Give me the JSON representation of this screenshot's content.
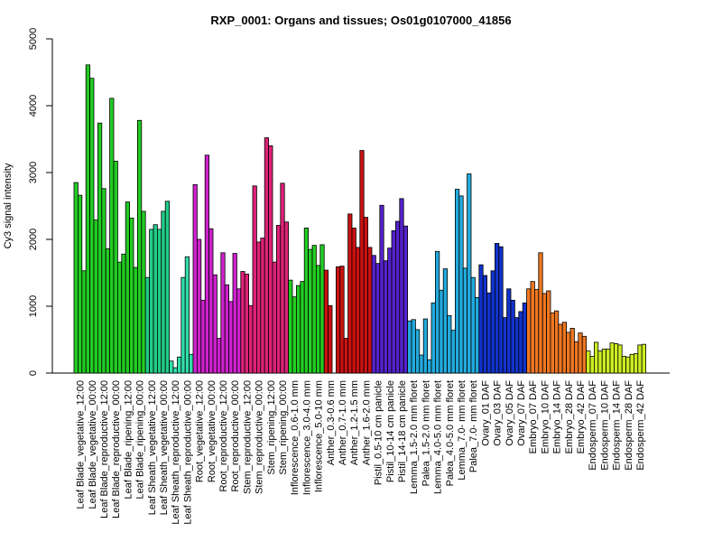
{
  "chart_data": {
    "type": "bar",
    "title": "RXP_0001: Organs and tissues; Os01g0107000_41856",
    "xlabel": "",
    "ylabel": "Cy3 signal intensity",
    "ylim": [
      0,
      5000
    ],
    "yticks": [
      0,
      1000,
      2000,
      3000,
      4000,
      5000
    ],
    "grid": false,
    "legend": "none",
    "groups": [
      {
        "label": "Leaf Blade_vegetative_12:00",
        "color": "#22cc22",
        "values": [
          2850,
          2660,
          1530
        ]
      },
      {
        "label": "Leaf Blade_vegetative_00:00",
        "color": "#22cc22",
        "values": [
          4610,
          4410,
          2290
        ]
      },
      {
        "label": "Leaf Blade_reproductive_12:00",
        "color": "#22cc22",
        "values": [
          3740,
          2760,
          1860
        ]
      },
      {
        "label": "Leaf Blade_reproductive_00:00",
        "color": "#22cc22",
        "values": [
          4110,
          3170,
          1660
        ]
      },
      {
        "label": "Leaf Blade_ripening_12:00",
        "color": "#22cc22",
        "values": [
          1780,
          2560,
          2320
        ]
      },
      {
        "label": "Leaf Blade_ripening_00:00",
        "color": "#22cc22",
        "values": [
          1580,
          3780,
          2420
        ]
      },
      {
        "label": "Leaf Sheath_vegetative_12:00",
        "color": "#22cc88",
        "values": [
          1430,
          2150,
          2220
        ]
      },
      {
        "label": "Leaf Sheath_vegetative_00:00",
        "color": "#22cc88",
        "values": [
          2150,
          2420,
          2570
        ]
      },
      {
        "label": "Leaf Sheath_reproductive_12:00",
        "color": "#33ddaa",
        "values": [
          180,
          80,
          240
        ]
      },
      {
        "label": "Leaf Sheath_reproductive_00:00",
        "color": "#33ddaa",
        "values": [
          1430,
          1740,
          280
        ]
      },
      {
        "label": "Root_vegetative_12:00",
        "color": "#cc22cc",
        "values": [
          2820,
          2000,
          1090
        ]
      },
      {
        "label": "Root_vegetative_00:00",
        "color": "#cc22cc",
        "values": [
          3260,
          2160,
          1470
        ]
      },
      {
        "label": "Root_reproductive_12:00",
        "color": "#cc22cc",
        "values": [
          520,
          1800,
          1320
        ]
      },
      {
        "label": "Root_reproductive_00:00",
        "color": "#cc22cc",
        "values": [
          1070,
          1790,
          1260
        ]
      },
      {
        "label": "Stem_reproductive_12:00",
        "color": "#dd2277",
        "values": [
          1520,
          1480,
          1010
        ]
      },
      {
        "label": "Stem_reproductive_00:00",
        "color": "#dd2277",
        "values": [
          2800,
          1960,
          2020
        ]
      },
      {
        "label": "Stem_ripening_12:00",
        "color": "#dd2277",
        "values": [
          3520,
          3400,
          1660
        ]
      },
      {
        "label": "Stem_ripening_00:00",
        "color": "#dd2277",
        "values": [
          2210,
          2840,
          2260
        ]
      },
      {
        "label": "Inflorescence_0.6-1.0 mm",
        "color": "#22cc22",
        "values": [
          1390,
          1140,
          1310
        ]
      },
      {
        "label": "Inflorescence_3.0-4.0 mm",
        "color": "#22cc22",
        "values": [
          1370,
          2170,
          1850
        ]
      },
      {
        "label": "Inflorescence_5.0-10 mm",
        "color": "#22cc22",
        "values": [
          1910,
          1610,
          1920
        ]
      },
      {
        "label": "Anther_0.3-0.6 mm",
        "color": "#cc1111",
        "values": [
          1540,
          1010,
          0
        ]
      },
      {
        "label": "Anther_0.7-1.0 mm",
        "color": "#cc1111",
        "values": [
          1590,
          1600,
          520
        ]
      },
      {
        "label": "Anther_1.2-1.5 mm",
        "color": "#cc1111",
        "values": [
          2380,
          2170,
          1880
        ]
      },
      {
        "label": "Anther_1.6-2.0 mm",
        "color": "#cc1111",
        "values": [
          3330,
          2330,
          1880
        ]
      },
      {
        "label": "Pistil_0.5-10 cm panicle",
        "color": "#5522cc",
        "values": [
          1760,
          1640,
          2510
        ]
      },
      {
        "label": "Pistil_10-14 cm panicle",
        "color": "#5522cc",
        "values": [
          1680,
          1870,
          2130
        ]
      },
      {
        "label": "Pistil_14-18 cm panicle",
        "color": "#5522cc",
        "values": [
          2270,
          2610,
          2200
        ]
      },
      {
        "label": "Lemma_1.5-2.0 mm floret",
        "color": "#22aadd",
        "values": [
          780,
          800,
          650
        ]
      },
      {
        "label": "Palea_1.5-2.0 mm floret",
        "color": "#22aadd",
        "values": [
          270,
          810,
          200
        ]
      },
      {
        "label": "Lemma_4.0-5.0 mm floret",
        "color": "#22aadd",
        "values": [
          1050,
          1820,
          1240
        ]
      },
      {
        "label": "Palea_4.0-5.0 mm floret",
        "color": "#22aadd",
        "values": [
          1560,
          860,
          640
        ]
      },
      {
        "label": "Lemma_7.0- mm floret",
        "color": "#22aadd",
        "values": [
          2750,
          2650,
          1570
        ]
      },
      {
        "label": "Palea_7.0- mm floret",
        "color": "#22aadd",
        "values": [
          2980,
          1430,
          1130
        ]
      },
      {
        "label": "Ovary_01 DAF",
        "color": "#1133cc",
        "values": [
          1620,
          1460,
          1200
        ]
      },
      {
        "label": "Ovary_03 DAF",
        "color": "#1133cc",
        "values": [
          1530,
          1940,
          1890
        ]
      },
      {
        "label": "Ovary_05 DAF",
        "color": "#1133cc",
        "values": [
          830,
          1260,
          1090
        ]
      },
      {
        "label": "Ovary_07 DAF",
        "color": "#1133cc",
        "values": [
          830,
          920,
          1050
        ]
      },
      {
        "label": "Embryo_07 DAF",
        "color": "#ee7722",
        "values": [
          1260,
          1370,
          1250
        ]
      },
      {
        "label": "Embryo_10 DAF",
        "color": "#ee7722",
        "values": [
          1800,
          1190,
          1230
        ]
      },
      {
        "label": "Embryo_14 DAF",
        "color": "#ee7722",
        "values": [
          900,
          930,
          730
        ]
      },
      {
        "label": "Embryo_28 DAF",
        "color": "#ee7722",
        "values": [
          760,
          610,
          670
        ]
      },
      {
        "label": "Embryo_42 DAF",
        "color": "#ee7722",
        "values": [
          470,
          600,
          550
        ]
      },
      {
        "label": "Endosperm_07 DAF",
        "color": "#ccee22",
        "values": [
          330,
          250,
          460
        ]
      },
      {
        "label": "Endosperm_10 DAF",
        "color": "#ccee22",
        "values": [
          330,
          360,
          360
        ]
      },
      {
        "label": "Endosperm_14 DAF",
        "color": "#ccee22",
        "values": [
          450,
          440,
          420
        ]
      },
      {
        "label": "Endosperm_28 DAF",
        "color": "#ccee22",
        "values": [
          250,
          240,
          280
        ]
      },
      {
        "label": "Endosperm_42 DAF",
        "color": "#ccee22",
        "values": [
          290,
          420,
          430
        ]
      }
    ]
  }
}
